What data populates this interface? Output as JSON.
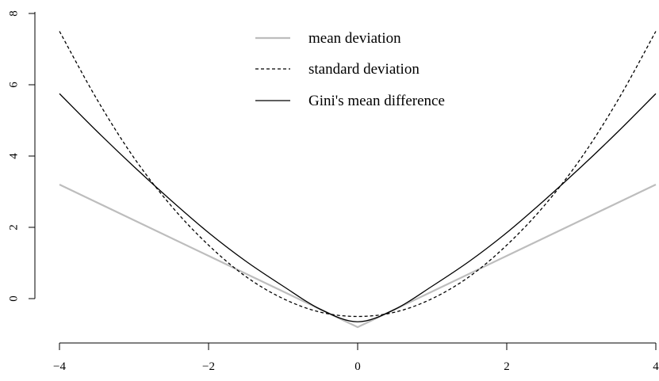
{
  "chart_data": {
    "type": "line",
    "title": "",
    "xlabel": "",
    "ylabel": "",
    "xlim": [
      -4,
      4
    ],
    "ylim": [
      -1,
      8
    ],
    "x_ticks": [
      "−4",
      "−2",
      "0",
      "2",
      "4"
    ],
    "y_ticks": [
      "0",
      "2",
      "4",
      "6",
      "8"
    ],
    "legend_position": "top-center",
    "series": [
      {
        "name": "mean deviation",
        "style": "solid",
        "color": "#bdbdbd",
        "x": [
          -4,
          -3,
          -2,
          -1,
          -0.5,
          0,
          0.5,
          1,
          2,
          3,
          4
        ],
        "y": [
          3.2,
          2.2,
          1.2,
          0.2,
          -0.3,
          -0.8,
          -0.3,
          0.2,
          1.2,
          2.2,
          3.2
        ]
      },
      {
        "name": "standard deviation",
        "style": "dashed",
        "color": "#000000",
        "x": [
          -4,
          -3.5,
          -3,
          -2.5,
          -2,
          -1.5,
          -1,
          -0.5,
          0,
          0.5,
          1,
          1.5,
          2,
          2.5,
          3,
          3.5,
          4
        ],
        "y": [
          7.5,
          5.6,
          3.95,
          2.6,
          1.5,
          0.62,
          0.0,
          -0.38,
          -0.5,
          -0.38,
          0.0,
          0.62,
          1.5,
          2.6,
          3.95,
          5.6,
          7.5
        ]
      },
      {
        "name": "Gini's mean difference",
        "style": "solid",
        "color": "#000000",
        "x": [
          -4,
          -3.5,
          -3,
          -2.5,
          -2,
          -1.5,
          -1,
          -0.5,
          0,
          0.5,
          1,
          1.5,
          2,
          2.5,
          3,
          3.5,
          4
        ],
        "y": [
          5.75,
          4.7,
          3.7,
          2.75,
          1.85,
          1.05,
          0.35,
          -0.3,
          -0.65,
          -0.3,
          0.35,
          1.05,
          1.85,
          2.75,
          3.7,
          4.7,
          5.75
        ]
      }
    ]
  }
}
